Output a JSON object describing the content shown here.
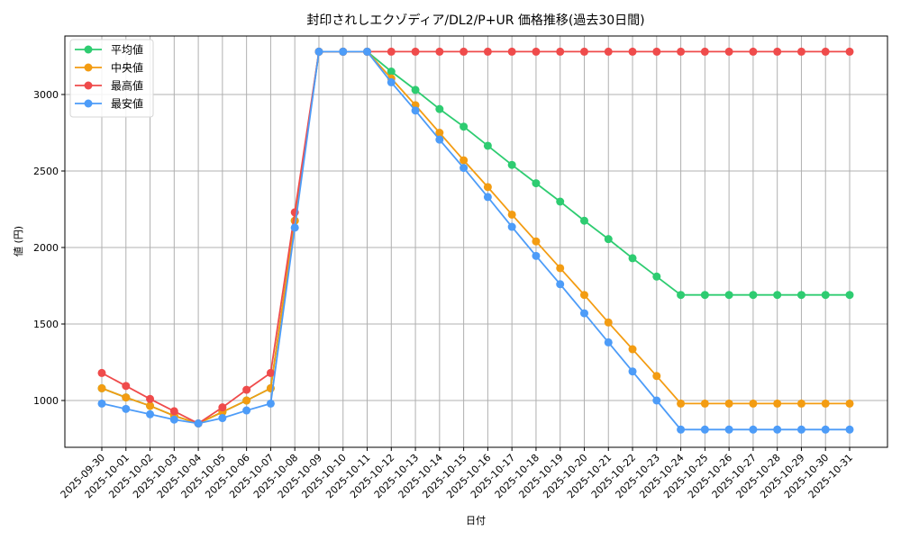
{
  "chart_data": {
    "type": "line",
    "title": "封印されしエクゾディア/DL2/P+UR 価格推移(過去30日間)",
    "xlabel": "日付",
    "ylabel": "値 (円)",
    "ylim": [
      690,
      3350
    ],
    "yticks": [
      1000,
      1500,
      2000,
      2500,
      3000
    ],
    "grid": true,
    "legend_position": "upper left",
    "x": [
      "2025-09-30",
      "2025-10-01",
      "2025-10-02",
      "2025-10-03",
      "2025-10-04",
      "2025-10-05",
      "2025-10-06",
      "2025-10-07",
      "2025-10-08",
      "2025-10-09",
      "2025-10-10",
      "2025-10-11",
      "2025-10-12",
      "2025-10-13",
      "2025-10-14",
      "2025-10-15",
      "2025-10-16",
      "2025-10-17",
      "2025-10-18",
      "2025-10-19",
      "2025-10-20",
      "2025-10-21",
      "2025-10-22",
      "2025-10-23",
      "2025-10-24",
      "2025-10-25",
      "2025-10-26",
      "2025-10-27",
      "2025-10-28",
      "2025-10-29",
      "2025-10-30",
      "2025-10-31"
    ],
    "series": [
      {
        "name": "平均値",
        "color": "#2ecc71",
        "values": [
          1080,
          1020,
          965,
          900,
          850,
          925,
          1000,
          1080,
          2175,
          3280,
          3280,
          3280,
          3150,
          3030,
          2905,
          2790,
          2665,
          2540,
          2420,
          2300,
          2175,
          2055,
          1930,
          1810,
          1690,
          1690,
          1690,
          1690,
          1690,
          1690,
          1690,
          1690
        ]
      },
      {
        "name": "中央値",
        "color": "#f39c12",
        "values": [
          1080,
          1020,
          965,
          900,
          850,
          925,
          1000,
          1080,
          2175,
          3280,
          3280,
          3280,
          3105,
          2930,
          2750,
          2570,
          2395,
          2215,
          2040,
          1865,
          1690,
          1510,
          1335,
          1160,
          980,
          980,
          980,
          980,
          980,
          980,
          980,
          980
        ]
      },
      {
        "name": "最高値",
        "color": "#ef4b4b",
        "values": [
          1180,
          1095,
          1010,
          930,
          850,
          955,
          1070,
          1180,
          2230,
          3280,
          3280,
          3280,
          3280,
          3280,
          3280,
          3280,
          3280,
          3280,
          3280,
          3280,
          3280,
          3280,
          3280,
          3280,
          3280,
          3280,
          3280,
          3280,
          3280,
          3280,
          3280,
          3280
        ]
      },
      {
        "name": "最安値",
        "color": "#4d9cf8",
        "values": [
          980,
          945,
          910,
          875,
          850,
          885,
          935,
          980,
          2130,
          3280,
          3280,
          3280,
          3080,
          2895,
          2705,
          2520,
          2330,
          2135,
          1945,
          1760,
          1570,
          1380,
          1190,
          1000,
          810,
          810,
          810,
          810,
          810,
          810,
          810,
          810
        ]
      }
    ],
    "draw_order": [
      "平均値",
      "中央値",
      "最高値",
      "最安値"
    ]
  }
}
